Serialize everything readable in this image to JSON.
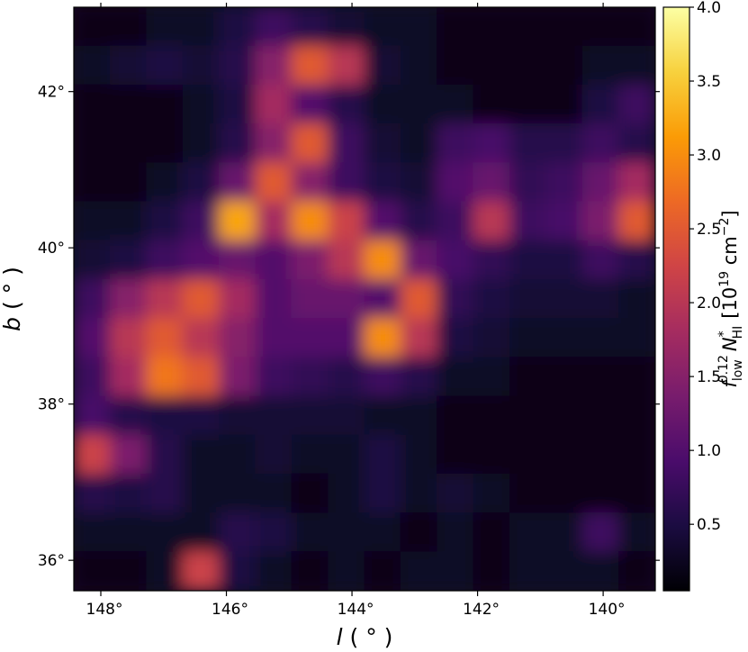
{
  "chart_data": {
    "type": "heatmap",
    "x_label": [
      "l",
      "( ° )"
    ],
    "y_label": [
      "b",
      "( ° )"
    ],
    "colorbar_label": [
      "f",
      "low",
      "0.12",
      "N",
      "*",
      "HI",
      "[10",
      "19",
      " cm",
      "−2",
      "]"
    ],
    "xlim": [
      148.43,
      139.17
    ],
    "ylim": [
      35.61,
      43.08
    ],
    "xticks": [
      {
        "value": 148,
        "label": "148°"
      },
      {
        "value": 146,
        "label": "146°"
      },
      {
        "value": 144,
        "label": "144°"
      },
      {
        "value": 142,
        "label": "142°"
      },
      {
        "value": 140,
        "label": "140°"
      }
    ],
    "yticks": [
      {
        "value": 36,
        "label": "36°"
      },
      {
        "value": 38,
        "label": "38°"
      },
      {
        "value": 40,
        "label": "40°"
      },
      {
        "value": 42,
        "label": "42°"
      }
    ],
    "clim": [
      0.05,
      4.0
    ],
    "cticks": [
      0.5,
      {
        "value": 1,
        "label": "1.0"
      },
      1.5,
      {
        "value": 2,
        "label": "2.0"
      },
      2.5,
      {
        "value": 3,
        "label": "3.0"
      },
      3.5,
      {
        "value": 4,
        "label": "4.0"
      }
    ],
    "colormap": [
      "#000004",
      "#1b0c41",
      "#4a0c6b",
      "#781c6d",
      "#a52c60",
      "#cf4446",
      "#ed6925",
      "#fb9b06",
      "#f7d13d",
      "#fcffa4"
    ],
    "z": [
      [
        0.2,
        0.2,
        0.3,
        0.3,
        0.5,
        0.8,
        0.6,
        0.4,
        0.3,
        0.3,
        0.2,
        0.2,
        0.2,
        0.2,
        0.2,
        0.2
      ],
      [
        0.3,
        0.4,
        0.5,
        0.4,
        0.6,
        1.5,
        2.5,
        2.0,
        0.4,
        0.3,
        0.2,
        0.2,
        0.2,
        0.2,
        0.3,
        0.3
      ],
      [
        0.2,
        0.2,
        0.2,
        0.3,
        0.5,
        1.8,
        1.0,
        0.6,
        0.3,
        0.3,
        0.3,
        0.2,
        0.2,
        0.2,
        0.5,
        0.8
      ],
      [
        0.2,
        0.2,
        0.2,
        0.3,
        0.6,
        1.5,
        2.5,
        0.8,
        0.4,
        0.3,
        0.8,
        0.9,
        0.6,
        0.6,
        0.8,
        0.6
      ],
      [
        0.2,
        0.2,
        0.3,
        0.5,
        1.2,
        2.5,
        1.5,
        0.8,
        0.5,
        0.4,
        1.0,
        1.2,
        0.7,
        0.8,
        1.2,
        1.8
      ],
      [
        0.3,
        0.3,
        0.5,
        0.8,
        3.2,
        1.8,
        3.0,
        2.2,
        1.0,
        0.6,
        0.8,
        2.0,
        0.8,
        0.9,
        1.4,
        2.5
      ],
      [
        0.4,
        0.5,
        0.8,
        1.0,
        1.2,
        1.0,
        1.4,
        2.0,
        3.0,
        1.2,
        0.9,
        0.7,
        0.5,
        0.5,
        0.8,
        0.6
      ],
      [
        0.8,
        1.5,
        2.0,
        2.5,
        1.8,
        1.0,
        1.2,
        1.2,
        1.0,
        2.5,
        0.7,
        0.5,
        0.4,
        0.4,
        0.4,
        0.3
      ],
      [
        1.0,
        2.0,
        2.5,
        2.0,
        1.5,
        1.0,
        1.0,
        1.0,
        3.0,
        2.0,
        0.5,
        0.4,
        0.3,
        0.3,
        0.3,
        0.3
      ],
      [
        0.8,
        1.8,
        2.8,
        2.5,
        1.4,
        0.8,
        0.7,
        0.6,
        0.8,
        0.6,
        0.3,
        0.3,
        0.2,
        0.2,
        0.2,
        0.2
      ],
      [
        0.9,
        0.6,
        0.5,
        0.5,
        0.4,
        0.4,
        0.4,
        0.4,
        0.3,
        0.3,
        0.2,
        0.2,
        0.2,
        0.2,
        0.2,
        0.2
      ],
      [
        2.2,
        1.4,
        0.6,
        0.3,
        0.3,
        0.4,
        0.3,
        0.3,
        0.5,
        0.3,
        0.2,
        0.2,
        0.2,
        0.2,
        0.2,
        0.2
      ],
      [
        0.6,
        0.5,
        0.6,
        0.3,
        0.3,
        0.3,
        0.2,
        0.3,
        0.5,
        0.3,
        0.4,
        0.3,
        0.2,
        0.2,
        0.2,
        0.2
      ],
      [
        0.3,
        0.3,
        0.3,
        0.3,
        0.6,
        0.5,
        0.3,
        0.3,
        0.3,
        0.2,
        0.3,
        0.2,
        0.3,
        0.3,
        0.8,
        0.3
      ],
      [
        0.2,
        0.2,
        0.3,
        2.2,
        0.5,
        0.3,
        0.2,
        0.3,
        0.2,
        0.3,
        0.3,
        0.2,
        0.3,
        0.3,
        0.3,
        0.2
      ]
    ]
  }
}
